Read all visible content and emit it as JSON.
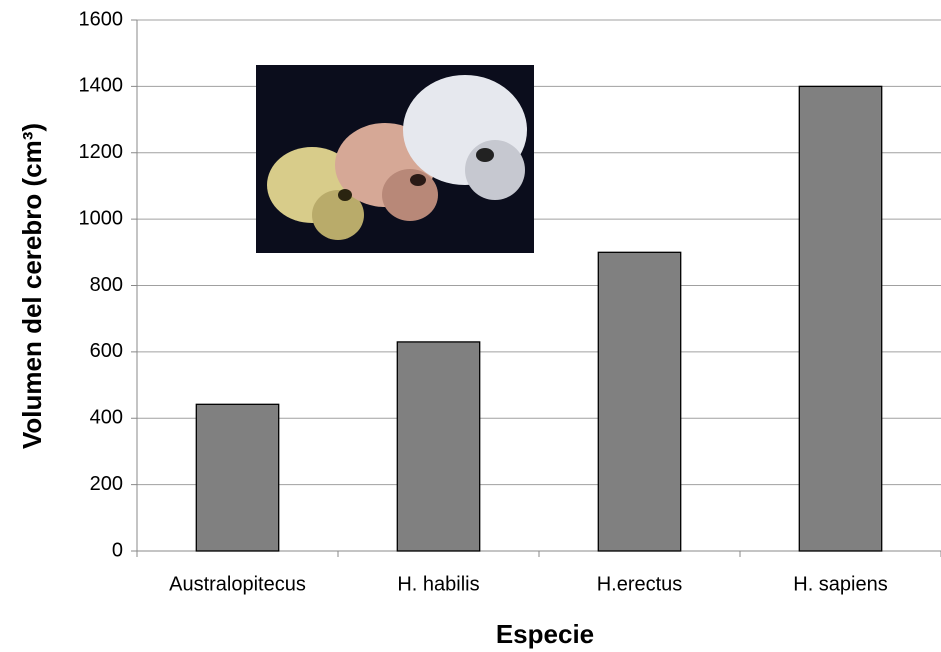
{
  "chart_data": {
    "type": "bar",
    "x_label": "Especie",
    "y_label": "Volumen del cerebro (cm³)",
    "categories": [
      "Australopitecus",
      "H. habilis",
      "H.erectus",
      "H. sapiens"
    ],
    "values": [
      442,
      630,
      900,
      1400
    ],
    "color": "#808080",
    "ylim": [
      0,
      1600
    ],
    "yticks": [
      0,
      200,
      400,
      600,
      800,
      1000,
      1200,
      1400,
      1600
    ],
    "grid": true
  }
}
